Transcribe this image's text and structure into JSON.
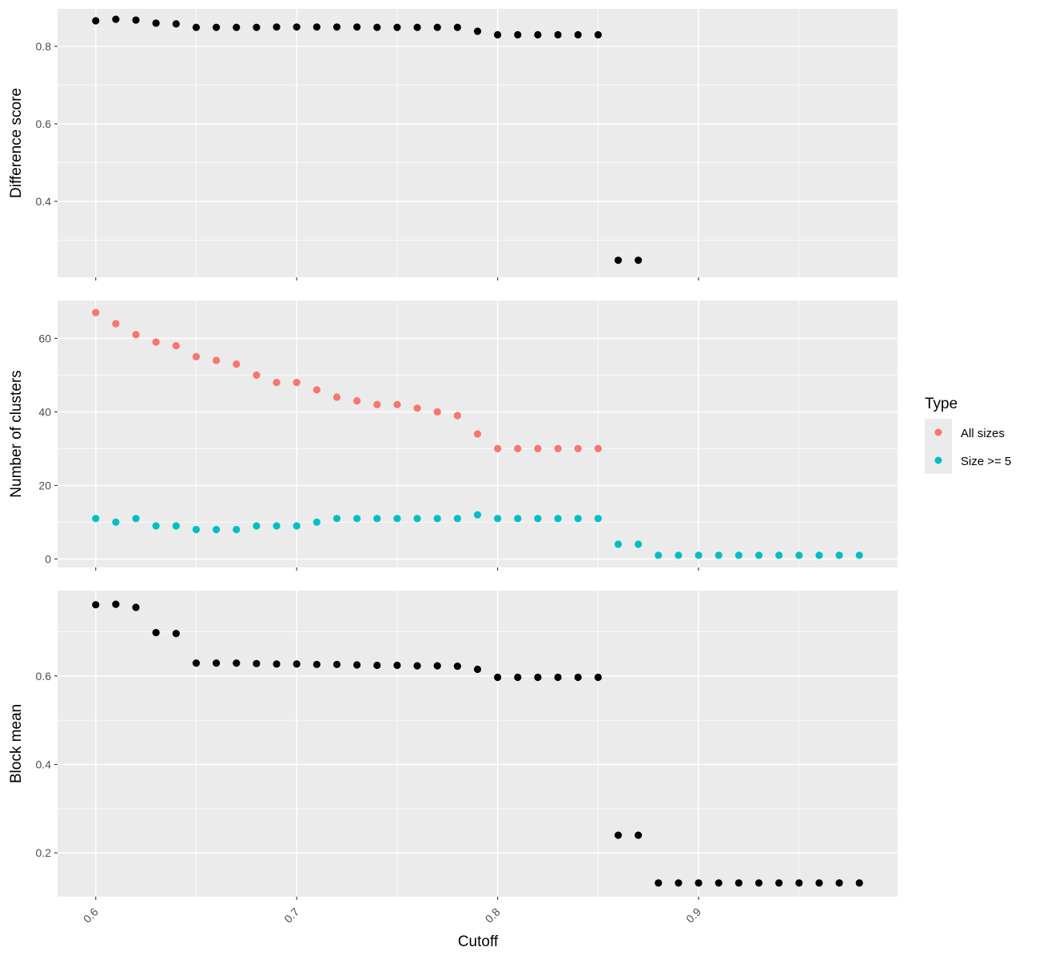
{
  "x_axis": {
    "label": "Cutoff",
    "range": [
      0.581,
      0.999
    ],
    "breaks": [
      0.6,
      0.7,
      0.8,
      0.9
    ],
    "minor_breaks": [
      0.65,
      0.75,
      0.85,
      0.95
    ],
    "tick_labels": [
      "0.6",
      "0.7",
      "0.8",
      "0.9"
    ],
    "tick_label_angle": 45
  },
  "legend": {
    "title": "Type",
    "placement": "right",
    "items": [
      {
        "label": "All sizes",
        "color": "#F8766D"
      },
      {
        "label": "Size >= 5",
        "color": "#00BFC4"
      }
    ]
  },
  "colors": {
    "panel_bg": "#EBEBEB",
    "grid": "#FFFFFF",
    "tick_text": "#4D4D4D",
    "point_default": "#000000"
  },
  "chart_data": [
    {
      "type": "scatter",
      "ylabel": "Difference score",
      "ylim": [
        0.204,
        0.897
      ],
      "y_breaks": [
        0.4,
        0.6,
        0.8
      ],
      "y_minor_breaks": [
        0.3,
        0.5,
        0.7
      ],
      "y_tick_labels": [
        "0.4",
        "0.6",
        "0.8"
      ],
      "show_x_labels": false,
      "series": [
        {
          "color": "#000000",
          "x": [
            0.6,
            0.61,
            0.62,
            0.63,
            0.64,
            0.65,
            0.66,
            0.67,
            0.68,
            0.69,
            0.7,
            0.71,
            0.72,
            0.73,
            0.74,
            0.75,
            0.76,
            0.77,
            0.78,
            0.79,
            0.8,
            0.81,
            0.82,
            0.83,
            0.84,
            0.85,
            0.86,
            0.87
          ],
          "y": [
            0.866,
            0.87,
            0.868,
            0.86,
            0.858,
            0.849,
            0.849,
            0.849,
            0.849,
            0.85,
            0.85,
            0.85,
            0.85,
            0.85,
            0.849,
            0.849,
            0.849,
            0.849,
            0.849,
            0.839,
            0.83,
            0.83,
            0.83,
            0.83,
            0.83,
            0.83,
            0.248,
            0.248
          ]
        }
      ]
    },
    {
      "type": "scatter",
      "ylabel": "Number of clusters",
      "ylim": [
        -2.3,
        70.3
      ],
      "y_breaks": [
        0,
        20,
        40,
        60
      ],
      "y_minor_breaks": [
        10,
        30,
        50
      ],
      "y_tick_labels": [
        "0",
        "20",
        "40",
        "60"
      ],
      "show_x_labels": false,
      "series": [
        {
          "name": "All sizes",
          "color": "#F8766D",
          "x": [
            0.6,
            0.61,
            0.62,
            0.63,
            0.64,
            0.65,
            0.66,
            0.67,
            0.68,
            0.69,
            0.7,
            0.71,
            0.72,
            0.73,
            0.74,
            0.75,
            0.76,
            0.77,
            0.78,
            0.79,
            0.8,
            0.81,
            0.82,
            0.83,
            0.84,
            0.85
          ],
          "y": [
            67,
            64,
            61,
            59,
            58,
            55,
            54,
            53,
            50,
            48,
            48,
            46,
            44,
            43,
            42,
            42,
            41,
            40,
            39,
            34,
            30,
            30,
            30,
            30,
            30,
            30
          ]
        },
        {
          "name": "Size >= 5",
          "color": "#00BFC4",
          "x": [
            0.6,
            0.61,
            0.62,
            0.63,
            0.64,
            0.65,
            0.66,
            0.67,
            0.68,
            0.69,
            0.7,
            0.71,
            0.72,
            0.73,
            0.74,
            0.75,
            0.76,
            0.77,
            0.78,
            0.79,
            0.8,
            0.81,
            0.82,
            0.83,
            0.84,
            0.85,
            0.86,
            0.87,
            0.88,
            0.89,
            0.9,
            0.91,
            0.92,
            0.93,
            0.94,
            0.95,
            0.96,
            0.97,
            0.98
          ],
          "y": [
            11,
            10,
            11,
            9,
            9,
            8,
            8,
            8,
            9,
            9,
            9,
            10,
            11,
            11,
            11,
            11,
            11,
            11,
            11,
            12,
            11,
            11,
            11,
            11,
            11,
            11,
            4,
            4,
            1,
            1,
            1,
            1,
            1,
            1,
            1,
            1,
            1,
            1,
            1
          ]
        }
      ]
    },
    {
      "type": "scatter",
      "ylabel": "Block mean",
      "ylim": [
        0.101,
        0.793
      ],
      "y_breaks": [
        0.2,
        0.4,
        0.6
      ],
      "y_minor_breaks": [
        0.3,
        0.5,
        0.7
      ],
      "y_tick_labels": [
        "0.2",
        "0.4",
        "0.6"
      ],
      "show_x_labels": true,
      "series": [
        {
          "color": "#000000",
          "x": [
            0.6,
            0.61,
            0.62,
            0.63,
            0.64,
            0.65,
            0.66,
            0.67,
            0.68,
            0.69,
            0.7,
            0.71,
            0.72,
            0.73,
            0.74,
            0.75,
            0.76,
            0.77,
            0.78,
            0.79,
            0.8,
            0.81,
            0.82,
            0.83,
            0.84,
            0.85,
            0.86,
            0.87,
            0.88,
            0.89,
            0.9,
            0.91,
            0.92,
            0.93,
            0.94,
            0.95,
            0.96,
            0.97,
            0.98
          ],
          "y": [
            0.761,
            0.762,
            0.755,
            0.698,
            0.696,
            0.629,
            0.629,
            0.629,
            0.628,
            0.627,
            0.627,
            0.626,
            0.626,
            0.625,
            0.624,
            0.624,
            0.623,
            0.623,
            0.622,
            0.615,
            0.597,
            0.597,
            0.597,
            0.597,
            0.597,
            0.597,
            0.24,
            0.24,
            0.132,
            0.132,
            0.132,
            0.132,
            0.132,
            0.132,
            0.132,
            0.132,
            0.132,
            0.132,
            0.132
          ]
        }
      ]
    }
  ]
}
